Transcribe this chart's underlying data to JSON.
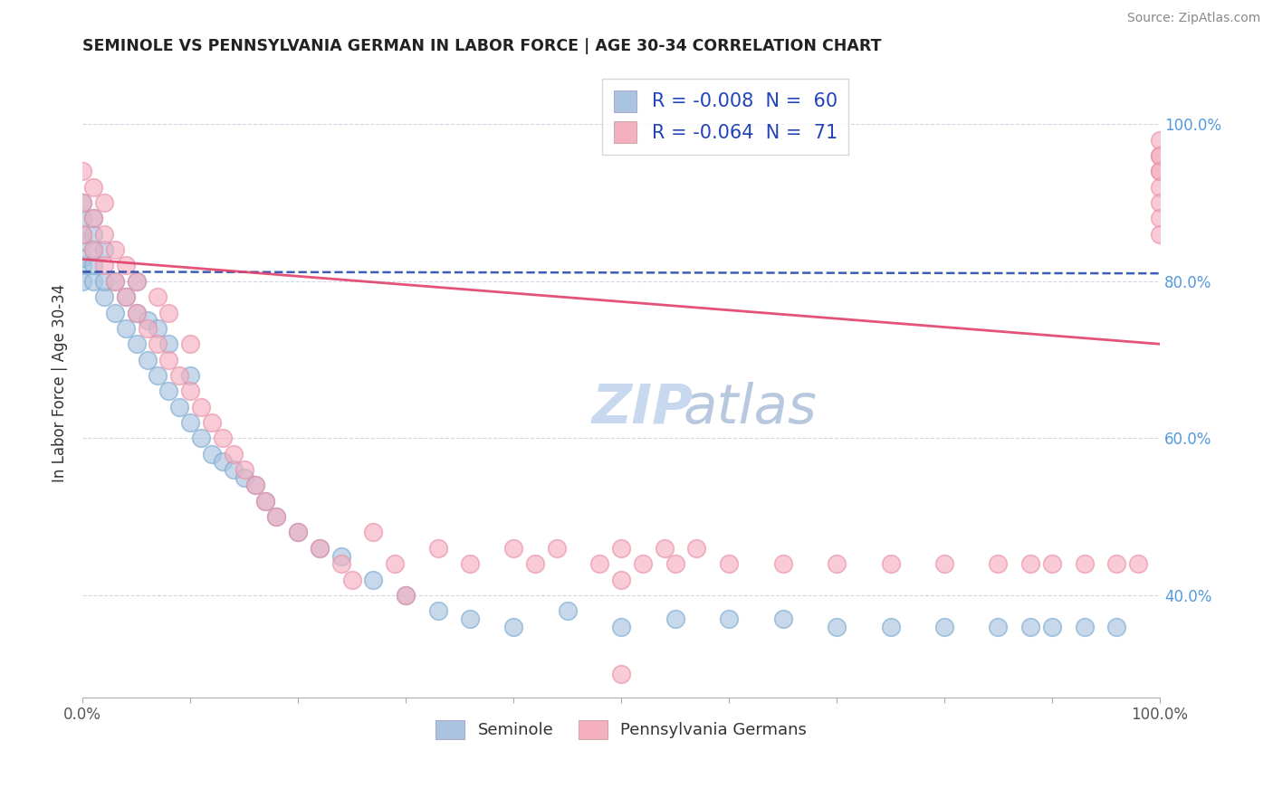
{
  "title": "SEMINOLE VS PENNSYLVANIA GERMAN IN LABOR FORCE | AGE 30-34 CORRELATION CHART",
  "source": "Source: ZipAtlas.com",
  "ylabel": "In Labor Force | Age 30-34",
  "xlim": [
    0.0,
    1.0
  ],
  "ylim": [
    0.27,
    1.07
  ],
  "yticks": [
    0.4,
    0.6,
    0.8,
    1.0
  ],
  "ytick_labels": [
    "40.0%",
    "60.0%",
    "80.0%",
    "100.0%"
  ],
  "blue_R": -0.008,
  "blue_N": 60,
  "pink_R": -0.064,
  "pink_N": 71,
  "blue_color": "#aac4e0",
  "pink_color": "#f5b0c0",
  "blue_edge_color": "#7aaad0",
  "pink_edge_color": "#e890a8",
  "blue_line_color": "#1a3faa",
  "pink_line_color": "#e0406a",
  "blue_label": "Seminole",
  "pink_label": "Pennsylvania Germans",
  "watermark_color": "#d0dff0",
  "watermark_text": "ZIPatlas",
  "blue_x": [
    0.0,
    0.0,
    0.0,
    0.0,
    0.0,
    0.0,
    0.0,
    0.01,
    0.01,
    0.01,
    0.01,
    0.01,
    0.02,
    0.02,
    0.02,
    0.03,
    0.03,
    0.04,
    0.04,
    0.05,
    0.05,
    0.05,
    0.06,
    0.06,
    0.07,
    0.07,
    0.08,
    0.08,
    0.09,
    0.1,
    0.1,
    0.11,
    0.12,
    0.13,
    0.14,
    0.15,
    0.16,
    0.17,
    0.18,
    0.2,
    0.22,
    0.24,
    0.27,
    0.3,
    0.33,
    0.36,
    0.4,
    0.45,
    0.5,
    0.55,
    0.6,
    0.65,
    0.7,
    0.75,
    0.8,
    0.85,
    0.88,
    0.9,
    0.93,
    0.96
  ],
  "blue_y": [
    0.8,
    0.82,
    0.83,
    0.85,
    0.86,
    0.88,
    0.9,
    0.8,
    0.82,
    0.84,
    0.86,
    0.88,
    0.78,
    0.8,
    0.84,
    0.76,
    0.8,
    0.74,
    0.78,
    0.72,
    0.76,
    0.8,
    0.7,
    0.75,
    0.68,
    0.74,
    0.66,
    0.72,
    0.64,
    0.62,
    0.68,
    0.6,
    0.58,
    0.57,
    0.56,
    0.55,
    0.54,
    0.52,
    0.5,
    0.48,
    0.46,
    0.45,
    0.42,
    0.4,
    0.38,
    0.37,
    0.36,
    0.38,
    0.36,
    0.37,
    0.37,
    0.37,
    0.36,
    0.36,
    0.36,
    0.36,
    0.36,
    0.36,
    0.36,
    0.36
  ],
  "pink_x": [
    0.0,
    0.0,
    0.0,
    0.01,
    0.01,
    0.01,
    0.02,
    0.02,
    0.02,
    0.03,
    0.03,
    0.04,
    0.04,
    0.05,
    0.05,
    0.06,
    0.07,
    0.07,
    0.08,
    0.08,
    0.09,
    0.1,
    0.1,
    0.11,
    0.12,
    0.13,
    0.14,
    0.15,
    0.16,
    0.17,
    0.18,
    0.2,
    0.22,
    0.24,
    0.25,
    0.27,
    0.29,
    0.3,
    0.33,
    0.36,
    0.4,
    0.42,
    0.44,
    0.48,
    0.5,
    0.52,
    0.54,
    0.55,
    0.57,
    0.6,
    0.5,
    0.65,
    0.7,
    0.75,
    0.8,
    0.85,
    0.88,
    0.9,
    0.93,
    0.96,
    0.98,
    1.0,
    1.0,
    1.0,
    1.0,
    1.0,
    1.0,
    1.0,
    1.0,
    1.0,
    0.5
  ],
  "pink_y": [
    0.86,
    0.9,
    0.94,
    0.84,
    0.88,
    0.92,
    0.82,
    0.86,
    0.9,
    0.8,
    0.84,
    0.78,
    0.82,
    0.76,
    0.8,
    0.74,
    0.72,
    0.78,
    0.7,
    0.76,
    0.68,
    0.66,
    0.72,
    0.64,
    0.62,
    0.6,
    0.58,
    0.56,
    0.54,
    0.52,
    0.5,
    0.48,
    0.46,
    0.44,
    0.42,
    0.48,
    0.44,
    0.4,
    0.46,
    0.44,
    0.46,
    0.44,
    0.46,
    0.44,
    0.46,
    0.44,
    0.46,
    0.44,
    0.46,
    0.44,
    0.42,
    0.44,
    0.44,
    0.44,
    0.44,
    0.44,
    0.44,
    0.44,
    0.44,
    0.44,
    0.44,
    0.94,
    0.96,
    0.98,
    0.96,
    0.94,
    0.92,
    0.9,
    0.88,
    0.86,
    0.3
  ]
}
